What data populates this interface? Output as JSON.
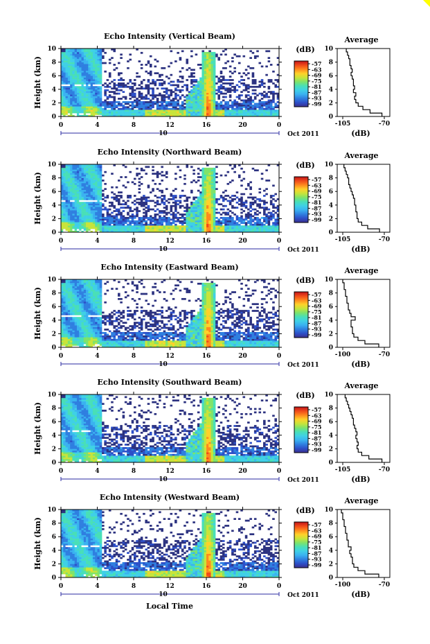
{
  "colors": {
    "accent_corner": "#ffff00",
    "scale_stops": [
      "#3c2f8e",
      "#2d4fc8",
      "#2f7fe0",
      "#3ab2f0",
      "#3fd0e6",
      "#49dfb7",
      "#7fe36a",
      "#c8e43a",
      "#ffd12a",
      "#ff8a1e",
      "#f04a1a",
      "#c0141a"
    ],
    "sparse_background": "#2c3280"
  },
  "common": {
    "height_axis_label": "Height (km)",
    "colorbar_unit": "(dB)",
    "colorbar_ticks": [
      "-57",
      "-63",
      "-69",
      "-75",
      "-81",
      "-87",
      "-93",
      "-99"
    ],
    "profile_title": "Average",
    "profile_xlabel": "(dB)",
    "time_ticks": [
      "0",
      "4",
      "8",
      "12",
      "16",
      "20",
      "0"
    ],
    "date_tick": "10",
    "date_label": "Oct 2011",
    "x_axis_title": "Local Time",
    "y_ticks": [
      "0",
      "2",
      "4",
      "6",
      "8",
      "10"
    ]
  },
  "panels": [
    {
      "title": "Echo Intensity (Vertical Beam)",
      "profile_xticks": [
        "-105",
        "-70"
      ]
    },
    {
      "title": "Echo Intensity (Northward Beam)",
      "profile_xticks": [
        "-105",
        "-70"
      ]
    },
    {
      "title": "Echo Intensity (Eastward Beam)",
      "profile_xticks": [
        "-100",
        "-70"
      ]
    },
    {
      "title": "Echo Intensity (Southward Beam)",
      "profile_xticks": [
        "-105",
        "-70"
      ]
    },
    {
      "title": "Echo Intensity (Westward Beam)",
      "profile_xticks": [
        "-100",
        "-70"
      ]
    }
  ],
  "chart_data": [
    {
      "type": "heatmap",
      "title": "Echo Intensity (Vertical Beam)",
      "xlabel": "",
      "ylabel": "Height (km)",
      "xlim": [
        0,
        24
      ],
      "ylim": [
        0,
        10
      ],
      "colorbar": {
        "label": "(dB)",
        "range": [
          -99,
          -57
        ]
      },
      "profile": {
        "title": "Average",
        "xlabel": "(dB)",
        "xlim": [
          -105,
          -70
        ],
        "heights": [
          0,
          0.5,
          1,
          1.5,
          2,
          2.5,
          3,
          3.5,
          4,
          4.5,
          5,
          5.5,
          6,
          6.5,
          7,
          7.5,
          8,
          8.5,
          9,
          9.5
        ],
        "values": [
          -72,
          -82,
          -88,
          -92,
          -94,
          -95,
          -94,
          -96,
          -95,
          -96,
          -96,
          -97,
          -98,
          -97,
          -98,
          -99,
          -99,
          -100,
          -101,
          -102
        ]
      }
    },
    {
      "type": "heatmap",
      "title": "Echo Intensity (Northward Beam)",
      "ylabel": "Height (km)",
      "xlim": [
        0,
        24
      ],
      "ylim": [
        0,
        10
      ],
      "colorbar": {
        "label": "(dB)",
        "range": [
          -99,
          -57
        ]
      },
      "profile": {
        "title": "Average",
        "xlabel": "(dB)",
        "xlim": [
          -105,
          -70
        ],
        "heights": [
          0,
          0.5,
          1,
          1.5,
          2,
          2.5,
          3,
          3.5,
          4,
          4.5,
          5,
          5.5,
          6,
          6.5,
          7,
          7.5,
          8,
          8.5,
          9,
          9.5
        ],
        "values": [
          -74,
          -84,
          -89,
          -92,
          -93,
          -93,
          -94,
          -94,
          -95,
          -95,
          -96,
          -97,
          -98,
          -99,
          -100,
          -100,
          -101,
          -102,
          -103,
          -104
        ]
      }
    },
    {
      "type": "heatmap",
      "title": "Echo Intensity (Eastward Beam)",
      "ylabel": "Height (km)",
      "xlim": [
        0,
        24
      ],
      "ylim": [
        0,
        10
      ],
      "colorbar": {
        "label": "(dB)",
        "range": [
          -99,
          -57
        ]
      },
      "profile": {
        "title": "Average",
        "xlabel": "(dB)",
        "xlim": [
          -100,
          -70
        ],
        "heights": [
          0,
          0.5,
          1,
          1.5,
          2,
          2.5,
          3,
          3.5,
          4,
          4.5,
          5,
          5.5,
          6,
          6.5,
          7,
          7.5,
          8,
          8.5,
          9,
          9.5
        ],
        "values": [
          -74,
          -84,
          -89,
          -92,
          -93,
          -93,
          -94,
          -94,
          -91,
          -94,
          -95,
          -96,
          -96,
          -97,
          -97,
          -98,
          -98,
          -99,
          -99,
          -100
        ]
      }
    },
    {
      "type": "heatmap",
      "title": "Echo Intensity (Southward Beam)",
      "ylabel": "Height (km)",
      "xlim": [
        0,
        24
      ],
      "ylim": [
        0,
        10
      ],
      "colorbar": {
        "label": "(dB)",
        "range": [
          -99,
          -57
        ]
      },
      "profile": {
        "title": "Average",
        "xlabel": "(dB)",
        "xlim": [
          -105,
          -70
        ],
        "heights": [
          0,
          0.5,
          1,
          1.5,
          2,
          2.5,
          3,
          3.5,
          4,
          4.5,
          5,
          5.5,
          6,
          6.5,
          7,
          7.5,
          8,
          8.5,
          9,
          9.5
        ],
        "values": [
          -72,
          -83,
          -89,
          -92,
          -93,
          -92,
          -93,
          -94,
          -93,
          -94,
          -95,
          -96,
          -96,
          -97,
          -98,
          -99,
          -100,
          -101,
          -102,
          -103
        ]
      }
    },
    {
      "type": "heatmap",
      "title": "Echo Intensity (Westward Beam)",
      "ylabel": "Height (km)",
      "xlabel": "Local Time",
      "xlim": [
        0,
        24
      ],
      "ylim": [
        0,
        10
      ],
      "colorbar": {
        "label": "(dB)",
        "range": [
          -99,
          -57
        ]
      },
      "profile": {
        "title": "Average",
        "xlabel": "(dB)",
        "xlim": [
          -100,
          -70
        ],
        "heights": [
          0,
          0.5,
          1,
          1.5,
          2,
          2.5,
          3,
          3.5,
          4,
          4.5,
          5,
          5.5,
          6,
          6.5,
          7,
          7.5,
          8,
          8.5,
          9,
          9.5
        ],
        "values": [
          -74,
          -84,
          -89,
          -92,
          -93,
          -93,
          -94,
          -95,
          -94,
          -96,
          -96,
          -97,
          -97,
          -98,
          -98,
          -99,
          -99,
          -100,
          -100,
          -101
        ]
      }
    }
  ]
}
